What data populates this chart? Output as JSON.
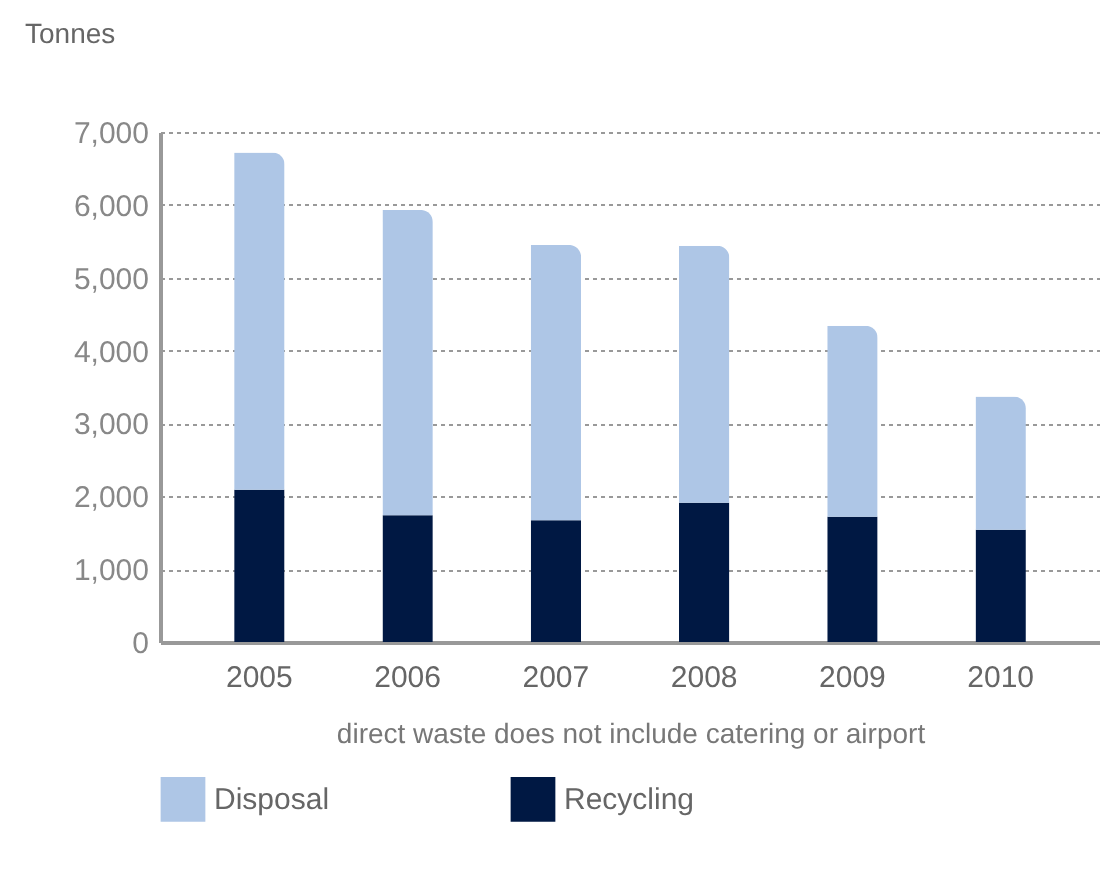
{
  "chart_data": {
    "type": "bar",
    "ylabel": "Tonnes",
    "categories": [
      "2005",
      "2006",
      "2007",
      "2008",
      "2009",
      "2010"
    ],
    "series": [
      {
        "name": "Recycling",
        "color": "#001843",
        "values": [
          2090,
          1740,
          1670,
          1910,
          1720,
          1540
        ]
      },
      {
        "name": "Disposal",
        "color": "#aec6e6",
        "values": [
          4630,
          4190,
          3780,
          3530,
          2620,
          1830
        ]
      }
    ],
    "stacked": true,
    "ylim": [
      0,
      7000
    ],
    "yticks": [
      0,
      {
        "value": 1000,
        "label": "1,000"
      },
      {
        "value": 2000,
        "label": "2,000"
      },
      {
        "value": 3000,
        "label": "3,000"
      },
      {
        "value": 4000,
        "label": "4,000"
      },
      {
        "value": 5000,
        "label": "5,000"
      },
      {
        "value": 6000,
        "label": "6,000"
      },
      {
        "value": 7000,
        "label": "7,000"
      }
    ],
    "grid": "y",
    "legend": "bottom",
    "annotations": [
      "direct waste does not include catering or airport"
    ]
  }
}
